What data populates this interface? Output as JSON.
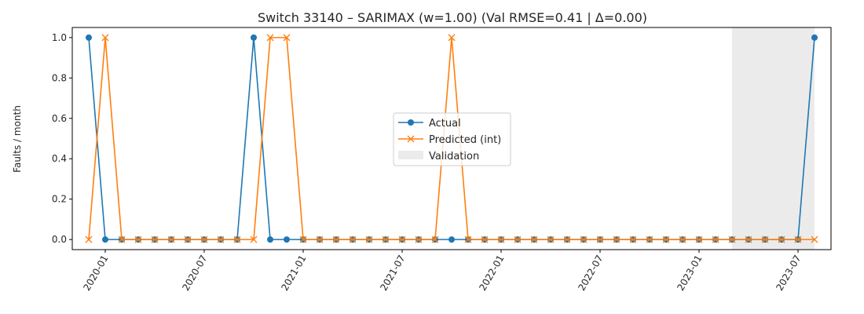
{
  "chart_data": {
    "type": "line",
    "title": "Switch 33140 – SARIMAX (w=1.00) (Val RMSE=0.41 | Δ=0.00)",
    "xlabel": "",
    "ylabel": "Faults / month",
    "x": [
      "2019-12",
      "2020-01",
      "2020-02",
      "2020-03",
      "2020-04",
      "2020-05",
      "2020-06",
      "2020-07",
      "2020-08",
      "2020-09",
      "2020-10",
      "2020-11",
      "2020-12",
      "2021-01",
      "2021-02",
      "2021-03",
      "2021-04",
      "2021-05",
      "2021-06",
      "2021-07",
      "2021-08",
      "2021-09",
      "2021-10",
      "2021-11",
      "2021-12",
      "2022-01",
      "2022-02",
      "2022-03",
      "2022-04",
      "2022-05",
      "2022-06",
      "2022-07",
      "2022-08",
      "2022-09",
      "2022-10",
      "2022-11",
      "2022-12",
      "2023-01",
      "2023-02",
      "2023-03",
      "2023-04",
      "2023-05",
      "2023-06",
      "2023-07",
      "2023-08"
    ],
    "series": [
      {
        "name": "Actual",
        "color": "#1f77b4",
        "marker": "circle",
        "values": [
          1,
          0,
          0,
          0,
          0,
          0,
          0,
          0,
          0,
          0,
          1,
          0,
          0,
          0,
          0,
          0,
          0,
          0,
          0,
          0,
          0,
          0,
          0,
          0,
          0,
          0,
          0,
          0,
          0,
          0,
          0,
          0,
          0,
          0,
          0,
          0,
          0,
          0,
          0,
          0,
          0,
          0,
          0,
          0,
          1
        ]
      },
      {
        "name": "Predicted (int)",
        "color": "#ff7f0e",
        "marker": "x",
        "values": [
          0,
          1,
          0,
          0,
          0,
          0,
          0,
          0,
          0,
          0,
          0,
          1,
          1,
          0,
          0,
          0,
          0,
          0,
          0,
          0,
          0,
          0,
          1,
          0,
          0,
          0,
          0,
          0,
          0,
          0,
          0,
          0,
          0,
          0,
          0,
          0,
          0,
          0,
          0,
          0,
          0,
          0,
          0,
          0,
          0
        ]
      }
    ],
    "validation": {
      "name": "Validation",
      "start": "2023-03",
      "end": "2023-08",
      "color": "#d3d3d3"
    },
    "x_ticks": [
      "2020-01",
      "2020-07",
      "2021-01",
      "2021-07",
      "2022-01",
      "2022-07",
      "2023-01",
      "2023-07"
    ],
    "y_ticks": [
      "0.0",
      "0.2",
      "0.4",
      "0.6",
      "0.8",
      "1.0"
    ],
    "ylim": [
      -0.05,
      1.05
    ],
    "xlim": [
      "2019-11",
      "2023-09"
    ],
    "legend_position": "center",
    "grid": false
  }
}
